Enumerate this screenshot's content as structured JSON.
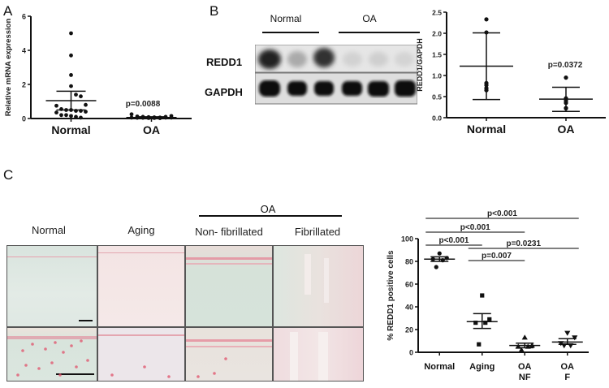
{
  "panels": {
    "a": {
      "letter": "A"
    },
    "b": {
      "letter": "B"
    },
    "c": {
      "letter": "C"
    }
  },
  "western_blot": {
    "groups": [
      "Normal",
      "OA"
    ],
    "rows": [
      "REDD1",
      "GAPDH"
    ],
    "lanes": 6
  },
  "histology": {
    "group_header": "OA",
    "columns": [
      "Normal",
      "Aging",
      "Non- fibrillated",
      "Fibrillated"
    ],
    "colors": {
      "stain": "#e0506a",
      "bg_green": "#d8e6dc",
      "bg_pink": "#f2dfe0"
    }
  },
  "chart_data": [
    {
      "id": "A",
      "type": "scatter",
      "title": "",
      "xlabel": "",
      "ylabel": "Relative mRNA expression",
      "categories": [
        "Normal",
        "OA"
      ],
      "ylim": [
        0,
        6
      ],
      "yticks": [
        "0",
        "2",
        "4",
        "6"
      ],
      "series": [
        {
          "name": "Normal",
          "values": [
            5.0,
            3.7,
            2.55,
            1.9,
            1.4,
            1.3,
            0.8,
            0.75,
            0.55,
            0.5,
            0.5,
            0.45,
            0.45,
            0.4,
            0.35,
            0.2,
            0.2,
            0.15,
            0.1,
            0.05
          ],
          "mean": 1.05,
          "sd_upper": 1.6,
          "sd_lower": 0.5
        },
        {
          "name": "OA",
          "values": [
            0.25,
            0.12,
            0.1,
            0.08,
            0.07,
            0.06,
            0.05,
            0.05,
            0.05,
            0.04,
            0.04,
            0.03,
            0.03,
            0.02,
            0.1,
            0.15
          ],
          "mean": 0.06,
          "sd_upper": 0.1,
          "sd_lower": 0.02
        }
      ],
      "annotations": [
        "p=0.0088"
      ]
    },
    {
      "id": "B",
      "type": "scatter",
      "title": "",
      "xlabel": "",
      "ylabel": "REDD1/GAPDH",
      "categories": [
        "Normal",
        "OA"
      ],
      "ylim": [
        0,
        2.5
      ],
      "yticks": [
        "0.0",
        "0.5",
        "1.0",
        "1.5",
        "2.0",
        "2.5"
      ],
      "series": [
        {
          "name": "Normal",
          "values": [
            2.33,
            2.02,
            0.82,
            0.77,
            0.7,
            0.65
          ],
          "mean": 1.22,
          "sd_upper": 2.01,
          "sd_lower": 0.43
        },
        {
          "name": "OA",
          "values": [
            0.95,
            0.46,
            0.4,
            0.35,
            0.23,
            0.22
          ],
          "mean": 0.44,
          "sd_upper": 0.72,
          "sd_lower": 0.15
        }
      ],
      "annotations": [
        "p=0.0372"
      ]
    },
    {
      "id": "C",
      "type": "scatter",
      "title": "",
      "xlabel": "",
      "ylabel": "% REDD1 positive cells",
      "categories": [
        "Normal",
        "Aging",
        "OA\nNF",
        "OA\nF"
      ],
      "category_lines": [
        [
          "Normal"
        ],
        [
          "Aging"
        ],
        [
          "OA",
          "NF"
        ],
        [
          "OA",
          "F"
        ]
      ],
      "ylim": [
        0,
        100
      ],
      "yticks": [
        "0",
        "20",
        "40",
        "60",
        "80",
        "100"
      ],
      "series": [
        {
          "name": "Normal",
          "marker": "circle",
          "values": [
            87,
            83,
            82,
            81,
            75
          ],
          "mean": 82,
          "sem_upper": 84,
          "sem_lower": 80
        },
        {
          "name": "Aging",
          "marker": "square",
          "values": [
            50,
            29,
            26,
            26,
            7
          ],
          "mean": 27,
          "sem_upper": 34,
          "sem_lower": 21
        },
        {
          "name": "OA NF",
          "marker": "triangle-up",
          "values": [
            13,
            6,
            5,
            5,
            2
          ],
          "mean": 6,
          "sem_upper": 8,
          "sem_lower": 4
        },
        {
          "name": "OA F",
          "marker": "triangle-down",
          "values": [
            17,
            13,
            8,
            6,
            6
          ],
          "mean": 9,
          "sem_upper": 12,
          "sem_lower": 7
        }
      ],
      "annotations": [
        {
          "text": "p<0.001",
          "from": "Normal",
          "to": "OA F"
        },
        {
          "text": "p<0.001",
          "from": "Normal",
          "to": "OA NF"
        },
        {
          "text": "p<0.001",
          "from": "Normal",
          "to": "Aging"
        },
        {
          "text": "p=0.0231",
          "from": "Aging",
          "to": "OA F"
        },
        {
          "text": "p=0.007",
          "from": "Aging",
          "to": "OA NF"
        }
      ]
    }
  ]
}
